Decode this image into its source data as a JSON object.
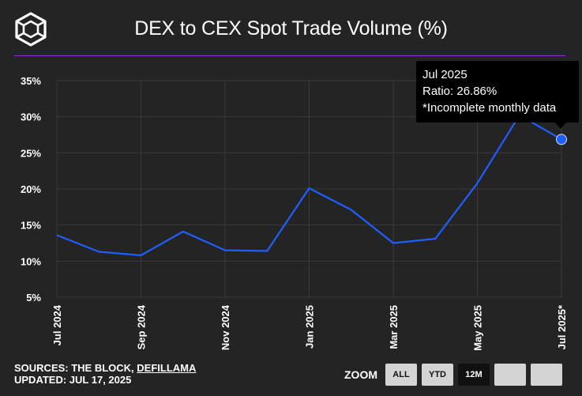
{
  "header": {
    "title": "DEX to CEX Spot Trade Volume (%)"
  },
  "colors": {
    "background": "#242424",
    "accent_rule": "#8b2fd6",
    "line": "#1f5fff",
    "grid": "#3a3a3a"
  },
  "icons": {
    "logo": "cube-logo-icon"
  },
  "tooltip": {
    "line1": "Jul 2025",
    "line2": "Ratio: 26.86%",
    "line3": "*Incomplete monthly data"
  },
  "footer": {
    "sources_prefix": "SOURCES: THE BLOCK, ",
    "sources_link": "DEFILLAMA",
    "updated": "UPDATED: JUL 17, 2025"
  },
  "zoom": {
    "label": "ZOOM",
    "buttons": [
      "ALL",
      "YTD",
      "12M",
      "",
      ""
    ],
    "active": "12M"
  },
  "chart_data": {
    "type": "line",
    "title": "DEX to CEX Spot Trade Volume (%)",
    "xlabel": "",
    "ylabel": "",
    "x": [
      "Jul 2024",
      "Aug 2024",
      "Sep 2024",
      "Oct 2024",
      "Nov 2024",
      "Dec 2024",
      "Jan 2025",
      "Feb 2025",
      "Mar 2025",
      "Apr 2025",
      "May 2025",
      "Jun 2025",
      "Jul 2025*"
    ],
    "x_tick_labels": [
      "Jul 2024",
      "Sep 2024",
      "Nov 2024",
      "Jan 2025",
      "Mar 2025",
      "May 2025",
      "Jul 2025*"
    ],
    "series": [
      {
        "values": [
          13.6,
          11.3,
          10.8,
          14.1,
          11.5,
          11.4,
          20.1,
          17.1,
          12.5,
          13.1,
          20.8,
          30.2,
          26.86
        ]
      }
    ],
    "y_ticks": [
      5,
      10,
      15,
      20,
      25,
      30,
      35
    ],
    "y_tick_labels": [
      "5%",
      "10%",
      "15%",
      "20%",
      "25%",
      "30%",
      "35%"
    ],
    "ylim": [
      5,
      35
    ],
    "grid": true,
    "highlight_index": 12
  }
}
